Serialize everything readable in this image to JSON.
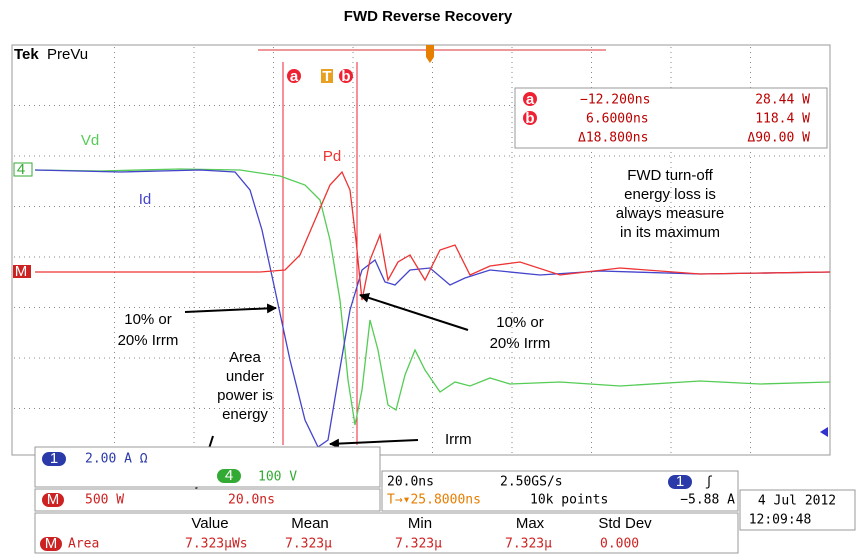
{
  "header": {
    "title": "FWD Reverse Recovery"
  },
  "scope": {
    "brand": "Tek",
    "mode": "PreVu",
    "cursor_markers": [
      "a",
      "T",
      "b"
    ],
    "readout": [
      [
        "a",
        "−12.200ns",
        "28.44 W"
      ],
      [
        "b",
        "6.6000ns",
        "118.4 W"
      ],
      [
        "Δ18.800ns",
        "Δ90.00 W"
      ]
    ],
    "traces": [
      "Vd",
      "Id",
      "Pd"
    ],
    "channel_markers": [
      "4",
      "M"
    ],
    "annotations": {
      "note": [
        "FWD turn-off",
        "energy loss is",
        "always measure",
        "in its maximum"
      ],
      "left_point": [
        "10% or",
        "20% Irrm"
      ],
      "right_point": [
        "10% or",
        "20% Irrm"
      ],
      "area": [
        "Area",
        "under",
        "power is",
        "energy"
      ],
      "peak": "Irrm"
    }
  },
  "status": {
    "ch1": {
      "badge": "1",
      "scale": "2.00 A Ω"
    },
    "ch4": {
      "badge": "4",
      "scale": "100 V"
    },
    "math": {
      "badge": "M",
      "scale": "500 W",
      "time": "20.0ns"
    },
    "timebase": {
      "scale": "20.0ns",
      "rate": "2.50GS/s",
      "position": "T→▾25.8000ns",
      "points": "10k points"
    },
    "trigger": {
      "badge": "1",
      "slope": "ʃ",
      "level": "−5.88 A"
    },
    "datetime": {
      "date": "4 Jul  2012",
      "time": "12:09:48"
    }
  },
  "measurements": {
    "headers": [
      "Value",
      "Mean",
      "Min",
      "Max",
      "Std Dev"
    ],
    "rows": [
      {
        "badge": "M",
        "name": "Area",
        "cells": [
          "7.323µWs",
          "7.323µ",
          "7.323µ",
          "7.323µ",
          "0.000"
        ]
      }
    ]
  }
}
